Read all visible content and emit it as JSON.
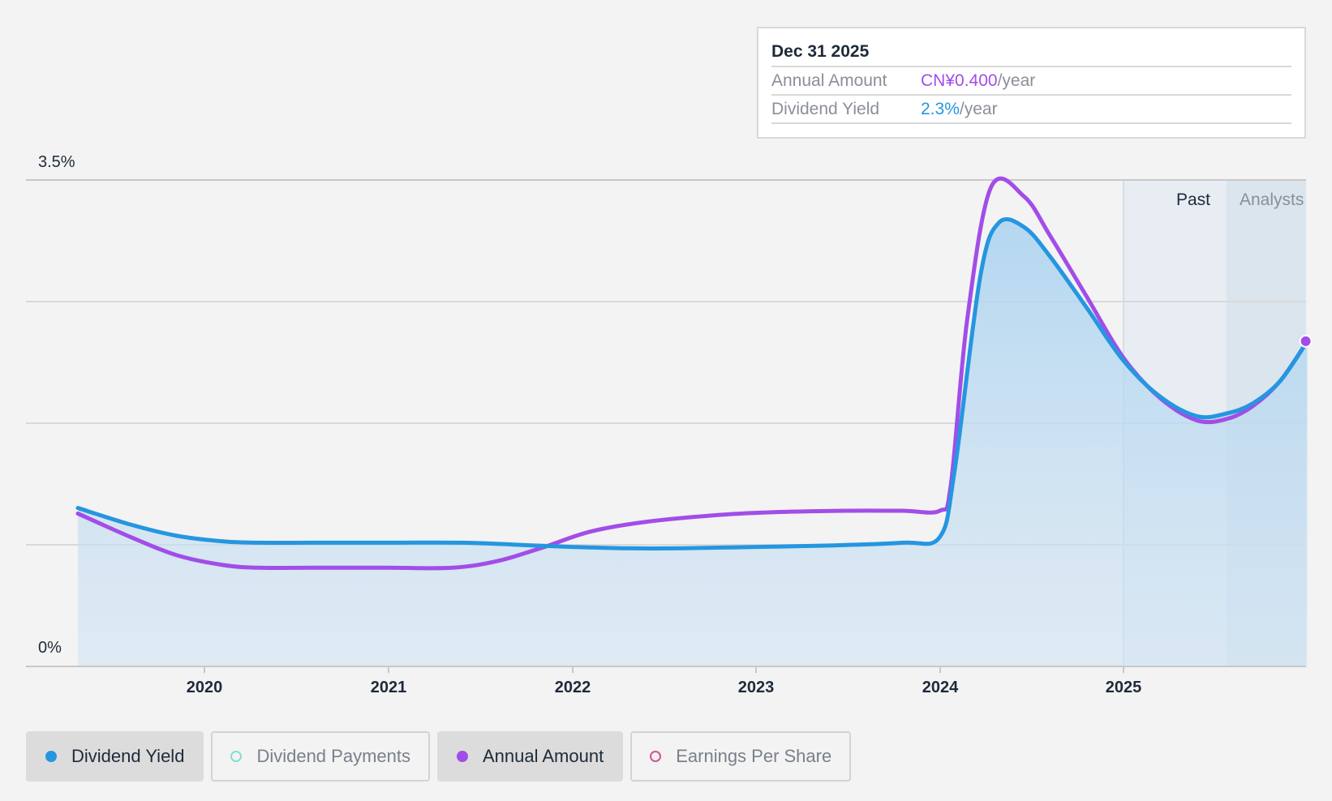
{
  "tooltip": {
    "date": "Dec 31 2025",
    "rows": [
      {
        "label": "Annual Amount",
        "value": "CN¥0.400",
        "unit": "/year"
      },
      {
        "label": "Dividend Yield",
        "value": "2.3%",
        "unit": "/year"
      }
    ]
  },
  "bands": {
    "past": "Past",
    "analysts": "Analysts"
  },
  "legend": [
    {
      "label": "Dividend Yield",
      "active": true,
      "color": "#2596e0",
      "filled": true
    },
    {
      "label": "Dividend Payments",
      "active": false,
      "color": "#7ee0d6",
      "filled": false
    },
    {
      "label": "Annual Amount",
      "active": true,
      "color": "#a24de8",
      "filled": true
    },
    {
      "label": "Earnings Per Share",
      "active": false,
      "color": "#d4558e",
      "filled": false
    }
  ],
  "colors": {
    "yield": "#2596e0",
    "amount": "#a24de8",
    "area": "#cfe3f3",
    "grid": "#d9d9d9"
  },
  "chart_data": {
    "type": "line",
    "y_min_label": "0%",
    "y_max_label": "3.5%",
    "ylim": [
      0,
      3.5
    ],
    "xlim": [
      2019.28,
      2026.0
    ],
    "x_ticks": [
      "2020",
      "2021",
      "2022",
      "2023",
      "2024",
      "2025"
    ],
    "x_tick_values": [
      2020,
      2021,
      2022,
      2023,
      2024,
      2025
    ],
    "past_start": 2025.0,
    "analysts_start": 2025.56,
    "series": [
      {
        "name": "Dividend Yield",
        "unit": "%",
        "points": [
          [
            2019.28,
            1.14
          ],
          [
            2019.6,
            1.02
          ],
          [
            2019.85,
            0.94
          ],
          [
            2020.1,
            0.9
          ],
          [
            2020.3,
            0.89
          ],
          [
            2020.6,
            0.89
          ],
          [
            2021.0,
            0.89
          ],
          [
            2021.4,
            0.89
          ],
          [
            2021.8,
            0.87
          ],
          [
            2022.0,
            0.86
          ],
          [
            2022.3,
            0.85
          ],
          [
            2022.6,
            0.85
          ],
          [
            2023.0,
            0.86
          ],
          [
            2023.4,
            0.87
          ],
          [
            2023.8,
            0.89
          ],
          [
            2024.0,
            0.93
          ],
          [
            2024.08,
            1.4
          ],
          [
            2024.22,
            2.8
          ],
          [
            2024.32,
            3.19
          ],
          [
            2024.46,
            3.16
          ],
          [
            2024.6,
            2.95
          ],
          [
            2024.8,
            2.58
          ],
          [
            2025.0,
            2.2
          ],
          [
            2025.2,
            1.94
          ],
          [
            2025.4,
            1.8
          ],
          [
            2025.56,
            1.82
          ],
          [
            2025.7,
            1.89
          ],
          [
            2025.85,
            2.05
          ],
          [
            2026.0,
            2.34
          ]
        ]
      },
      {
        "name": "Annual Amount",
        "unit": "%",
        "points": [
          [
            2019.28,
            1.1
          ],
          [
            2019.6,
            0.93
          ],
          [
            2019.85,
            0.8
          ],
          [
            2020.1,
            0.73
          ],
          [
            2020.3,
            0.71
          ],
          [
            2020.6,
            0.71
          ],
          [
            2021.0,
            0.71
          ],
          [
            2021.35,
            0.71
          ],
          [
            2021.6,
            0.76
          ],
          [
            2021.85,
            0.86
          ],
          [
            2022.1,
            0.97
          ],
          [
            2022.4,
            1.04
          ],
          [
            2022.8,
            1.09
          ],
          [
            2023.1,
            1.11
          ],
          [
            2023.5,
            1.12
          ],
          [
            2023.8,
            1.12
          ],
          [
            2024.0,
            1.12
          ],
          [
            2024.06,
            1.3
          ],
          [
            2024.15,
            2.5
          ],
          [
            2024.28,
            3.45
          ],
          [
            2024.46,
            3.38
          ],
          [
            2024.6,
            3.1
          ],
          [
            2024.8,
            2.66
          ],
          [
            2025.0,
            2.22
          ],
          [
            2025.2,
            1.93
          ],
          [
            2025.4,
            1.77
          ],
          [
            2025.56,
            1.78
          ],
          [
            2025.7,
            1.87
          ],
          [
            2025.85,
            2.05
          ],
          [
            2026.0,
            2.34
          ]
        ]
      }
    ]
  }
}
